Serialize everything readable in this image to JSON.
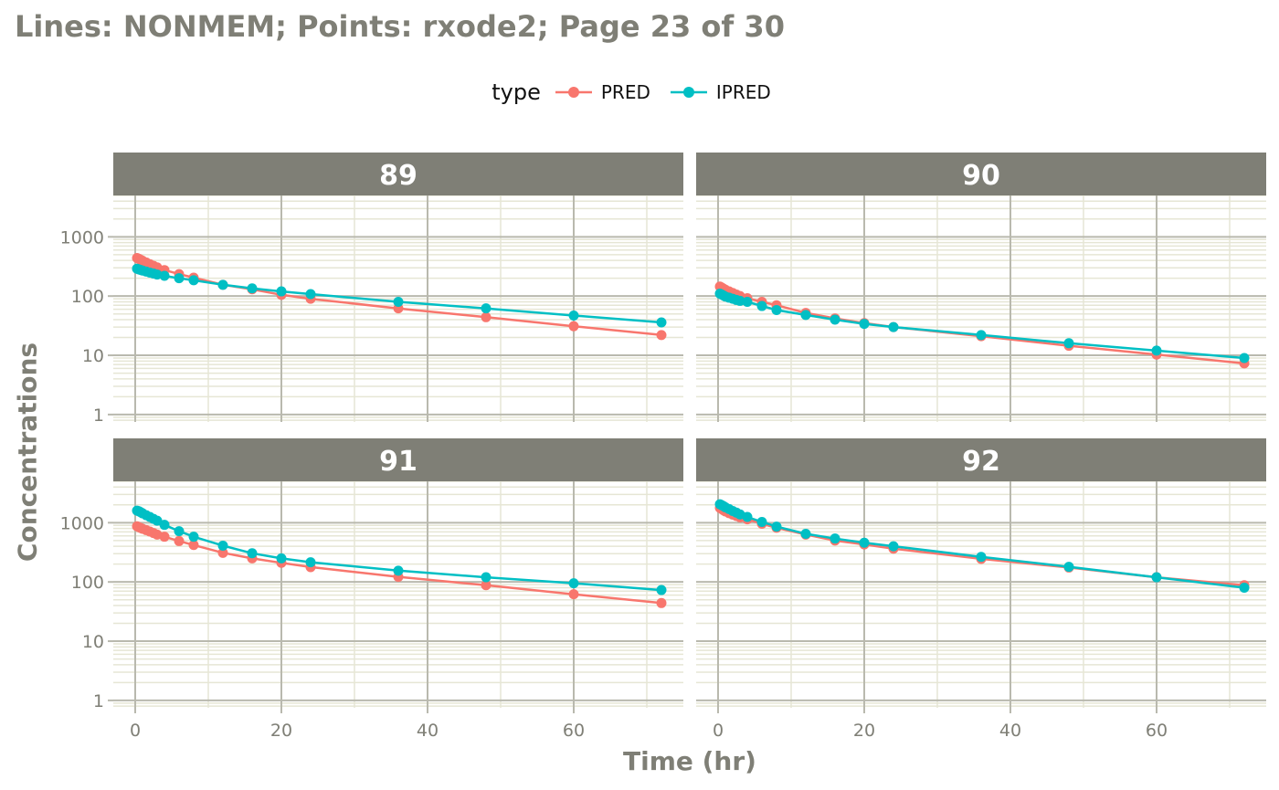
{
  "title": "Lines: NONMEM; Points: rxode2; Page 23 of 30",
  "legend": {
    "title": "type",
    "items": [
      {
        "label": "PRED",
        "color": "#f8766d"
      },
      {
        "label": "IPRED",
        "color": "#00bfc4"
      }
    ]
  },
  "chart_data": {
    "type": "line",
    "xlabel": "Time (hr)",
    "ylabel": "Concentrations",
    "y_scale": "log10",
    "xlim": [
      -3,
      75
    ],
    "ylim": [
      0.75,
      5000
    ],
    "x_ticks": [
      0,
      20,
      40,
      60
    ],
    "y_ticks": [
      1,
      10,
      100,
      1000
    ],
    "y_tick_labels": [
      "1",
      "10",
      "100",
      "1000"
    ],
    "grid": true,
    "legend_position": "top",
    "series_style": "PRED and IPRED shown as lines (NONMEM) with points (rxode2)",
    "x": [
      0.25,
      0.5,
      0.75,
      1,
      1.5,
      2,
      2.5,
      3,
      4,
      6,
      8,
      12,
      16,
      20,
      24,
      36,
      48,
      60,
      72
    ],
    "panels": [
      {
        "label": "89",
        "series": [
          {
            "name": "PRED",
            "values": [
              440,
              425,
              410,
              395,
              370,
              345,
              325,
              305,
              275,
              235,
              205,
              155,
              130,
              105,
              90,
              62,
              44,
              31,
              22
            ]
          },
          {
            "name": "IPRED",
            "values": [
              290,
              282,
              276,
              270,
              259,
              249,
              240,
              231,
              220,
              200,
              185,
              155,
              135,
              120,
              108,
              80,
              62,
              47,
              36
            ]
          }
        ]
      },
      {
        "label": "90",
        "series": [
          {
            "name": "PRED",
            "values": [
              145,
              139,
              133,
              128,
              120,
              113,
              106,
              100,
              92,
              80,
              70,
              52,
              42,
              35,
              30,
              21,
              14.5,
              10.3,
              7.3
            ]
          },
          {
            "name": "IPRED",
            "values": [
              110,
              106,
              102,
              98,
              94,
              90,
              86,
              83,
              80,
              68,
              58,
              48,
              40,
              34,
              30,
              22,
              16,
              12,
              9
            ]
          }
        ]
      },
      {
        "label": "91",
        "series": [
          {
            "name": "PRED",
            "values": [
              870,
              840,
              815,
              790,
              750,
              710,
              670,
              630,
              580,
              490,
              420,
              310,
              250,
              210,
              178,
              122,
              88,
              62,
              44
            ]
          },
          {
            "name": "IPRED",
            "values": [
              1600,
              1560,
              1500,
              1440,
              1340,
              1250,
              1160,
              1080,
              920,
              720,
              580,
              410,
              305,
              250,
              215,
              155,
              120,
              95,
              73
            ]
          }
        ]
      },
      {
        "label": "92",
        "series": [
          {
            "name": "PRED",
            "values": [
              1780,
              1700,
              1620,
              1550,
              1450,
              1370,
              1300,
              1230,
              1140,
              960,
              820,
              630,
              500,
              430,
              365,
              245,
              175,
              120,
              88
            ]
          },
          {
            "name": "IPRED",
            "values": [
              2050,
              1980,
              1900,
              1820,
              1700,
              1580,
              1480,
              1380,
              1250,
              1030,
              860,
              650,
              540,
              460,
              400,
              265,
              180,
              120,
              80
            ]
          }
        ]
      }
    ]
  }
}
